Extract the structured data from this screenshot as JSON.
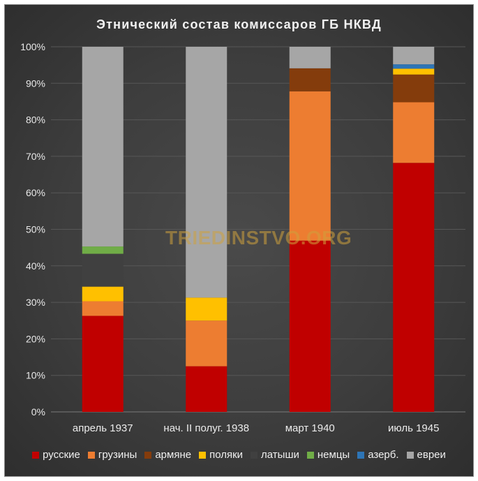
{
  "chart_data": {
    "type": "bar",
    "stacked": true,
    "title": "Этнический состав комиссаров ГБ НКВД",
    "xlabel": "",
    "ylabel": "",
    "ylim": [
      0,
      100
    ],
    "y_ticks": [
      "0%",
      "10%",
      "20%",
      "30%",
      "40%",
      "50%",
      "60%",
      "70%",
      "80%",
      "90%",
      "100%"
    ],
    "grid": true,
    "legend_position": "bottom",
    "categories": [
      "апрель 1937",
      "нач. II полуг. 1938",
      "март 1940",
      "июль 1945"
    ],
    "series": [
      {
        "name": "русские",
        "color": "#c00000",
        "values": [
          26.3,
          12.5,
          46.9,
          68.2
        ]
      },
      {
        "name": "грузины",
        "color": "#ed7d31",
        "values": [
          4.0,
          12.5,
          40.9,
          16.6
        ]
      },
      {
        "name": "армяне",
        "color": "#843c0c",
        "values": [
          0,
          0,
          6.3,
          7.6
        ]
      },
      {
        "name": "поляки",
        "color": "#ffc000",
        "values": [
          4.0,
          6.3,
          0,
          1.6
        ]
      },
      {
        "name": "латыши",
        "color": "#404040",
        "values": [
          9.0,
          0,
          0,
          0
        ]
      },
      {
        "name": "немцы",
        "color": "#70ad47",
        "values": [
          2.0,
          0,
          0,
          0
        ]
      },
      {
        "name": "азерб.",
        "color": "#2e75b6",
        "values": [
          0,
          0,
          0,
          1.2
        ]
      },
      {
        "name": "евреи",
        "color": "#a6a6a6",
        "values": [
          54.7,
          68.7,
          5.9,
          4.8
        ]
      }
    ]
  },
  "watermark": "TRIEDINSTVO.ORG"
}
